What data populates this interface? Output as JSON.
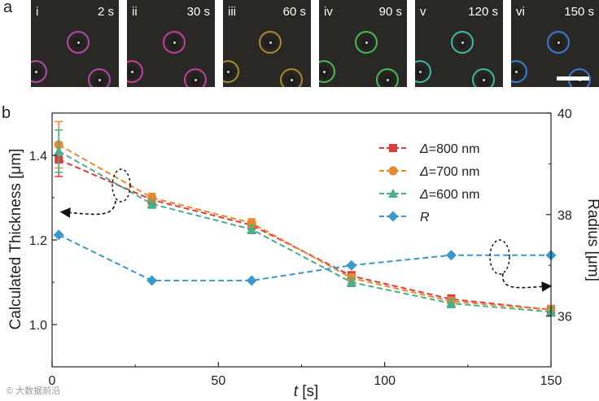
{
  "panels": {
    "a": "a",
    "b": "b"
  },
  "photos": [
    {
      "roman": "i",
      "time": "2 s",
      "ring_color": "#b04aa8"
    },
    {
      "roman": "ii",
      "time": "30 s",
      "ring_color": "#c0409a"
    },
    {
      "roman": "iii",
      "time": "60 s",
      "ring_color": "#a88a30"
    },
    {
      "roman": "iv",
      "time": "90 s",
      "ring_color": "#4ab858"
    },
    {
      "roman": "v",
      "time": "120 s",
      "ring_color": "#40b8a0"
    },
    {
      "roman": "vi",
      "time": "150 s",
      "ring_color": "#3a7ad8"
    }
  ],
  "chart_data": {
    "type": "line",
    "xlabel_italic": "t",
    "xlabel_unit": " [s]",
    "ylabel": "Calculated Thickness [μm]",
    "y2label": "Radius [μm]",
    "xlim": [
      0,
      150
    ],
    "ylim": [
      0.9,
      1.5
    ],
    "y2lim": [
      35,
      40
    ],
    "xticks": [
      "0",
      "50",
      "100",
      "150"
    ],
    "yticks": [
      "1.0",
      "1.2",
      "1.4"
    ],
    "y2ticks": [
      "36",
      "38",
      "40"
    ],
    "x": [
      2,
      30,
      60,
      90,
      120,
      150
    ],
    "series": [
      {
        "name_italic": "Δ",
        "name_rest": "=800 nm",
        "color": "#e0393e",
        "marker": "square",
        "axis": "left",
        "values": [
          1.39,
          1.295,
          1.235,
          1.115,
          1.06,
          1.035
        ],
        "errors": [
          0.04,
          0.01,
          0.01,
          0.01,
          0.01,
          0.01
        ]
      },
      {
        "name_italic": "Δ",
        "name_rest": "=700 nm",
        "color": "#e8892c",
        "marker": "circle",
        "axis": "left",
        "values": [
          1.425,
          1.3,
          1.24,
          1.11,
          1.055,
          1.035
        ],
        "errors": [
          0.055,
          0.01,
          0.01,
          0.01,
          0.01,
          0.01
        ]
      },
      {
        "name_italic": "Δ",
        "name_rest": "=600 nm",
        "color": "#4aae8a",
        "marker": "triangle",
        "axis": "left",
        "values": [
          1.41,
          1.285,
          1.225,
          1.1,
          1.05,
          1.03
        ],
        "errors": [
          0.05,
          0.01,
          0.01,
          0.01,
          0.01,
          0.01
        ]
      },
      {
        "name_italic": "R",
        "name_rest": "",
        "color": "#3b98cc",
        "marker": "diamond",
        "axis": "right",
        "values": [
          37.6,
          36.7,
          36.7,
          37.0,
          37.2,
          37.2
        ],
        "errors": []
      }
    ]
  },
  "watermark": "© 大数据前沿"
}
